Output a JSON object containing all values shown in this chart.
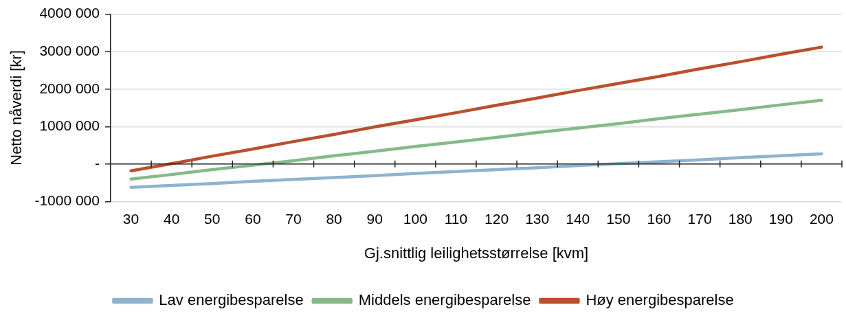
{
  "chart_data": {
    "type": "line",
    "xlabel": "Gj.snittlig leilighetsstørrelse [kvm]",
    "ylabel": "Netto nåverdi [kr]",
    "categories": [
      "30",
      "40",
      "50",
      "60",
      "70",
      "80",
      "90",
      "100",
      "110",
      "120",
      "130",
      "140",
      "150",
      "160",
      "170",
      "180",
      "190",
      "200"
    ],
    "series": [
      {
        "name": "Lav energibesparelse",
        "color": "#8db3cf",
        "values": [
          -620000,
          -570000,
          -520000,
          -460000,
          -410000,
          -360000,
          -310000,
          -250000,
          -200000,
          -150000,
          -100000,
          -40000,
          10000,
          60000,
          110000,
          170000,
          220000,
          270000
        ]
      },
      {
        "name": "Middels energibesparelse",
        "color": "#84ba8a",
        "values": [
          -400000,
          -280000,
          -150000,
          -30000,
          90000,
          220000,
          340000,
          470000,
          590000,
          710000,
          840000,
          960000,
          1080000,
          1210000,
          1330000,
          1450000,
          1580000,
          1700000
        ]
      },
      {
        "name": "Høy energibesparelse",
        "color": "#b8502e",
        "values": [
          -180000,
          10000,
          210000,
          400000,
          600000,
          790000,
          990000,
          1180000,
          1370000,
          1570000,
          1760000,
          1960000,
          2150000,
          2340000,
          2540000,
          2730000,
          2930000,
          3120000
        ]
      }
    ],
    "ylim": [
      -1000000,
      4000000
    ],
    "yticks": [
      {
        "value": -1000000,
        "label": "-1000 000"
      },
      {
        "value": 0,
        "label": "-"
      },
      {
        "value": 1000000,
        "label": "1000 000"
      },
      {
        "value": 2000000,
        "label": "2000 000"
      },
      {
        "value": 3000000,
        "label": "3000 000"
      },
      {
        "value": 4000000,
        "label": "4000 000"
      }
    ],
    "grid": "y",
    "legend": "bottom",
    "marker": "none",
    "line_style": "solid"
  }
}
